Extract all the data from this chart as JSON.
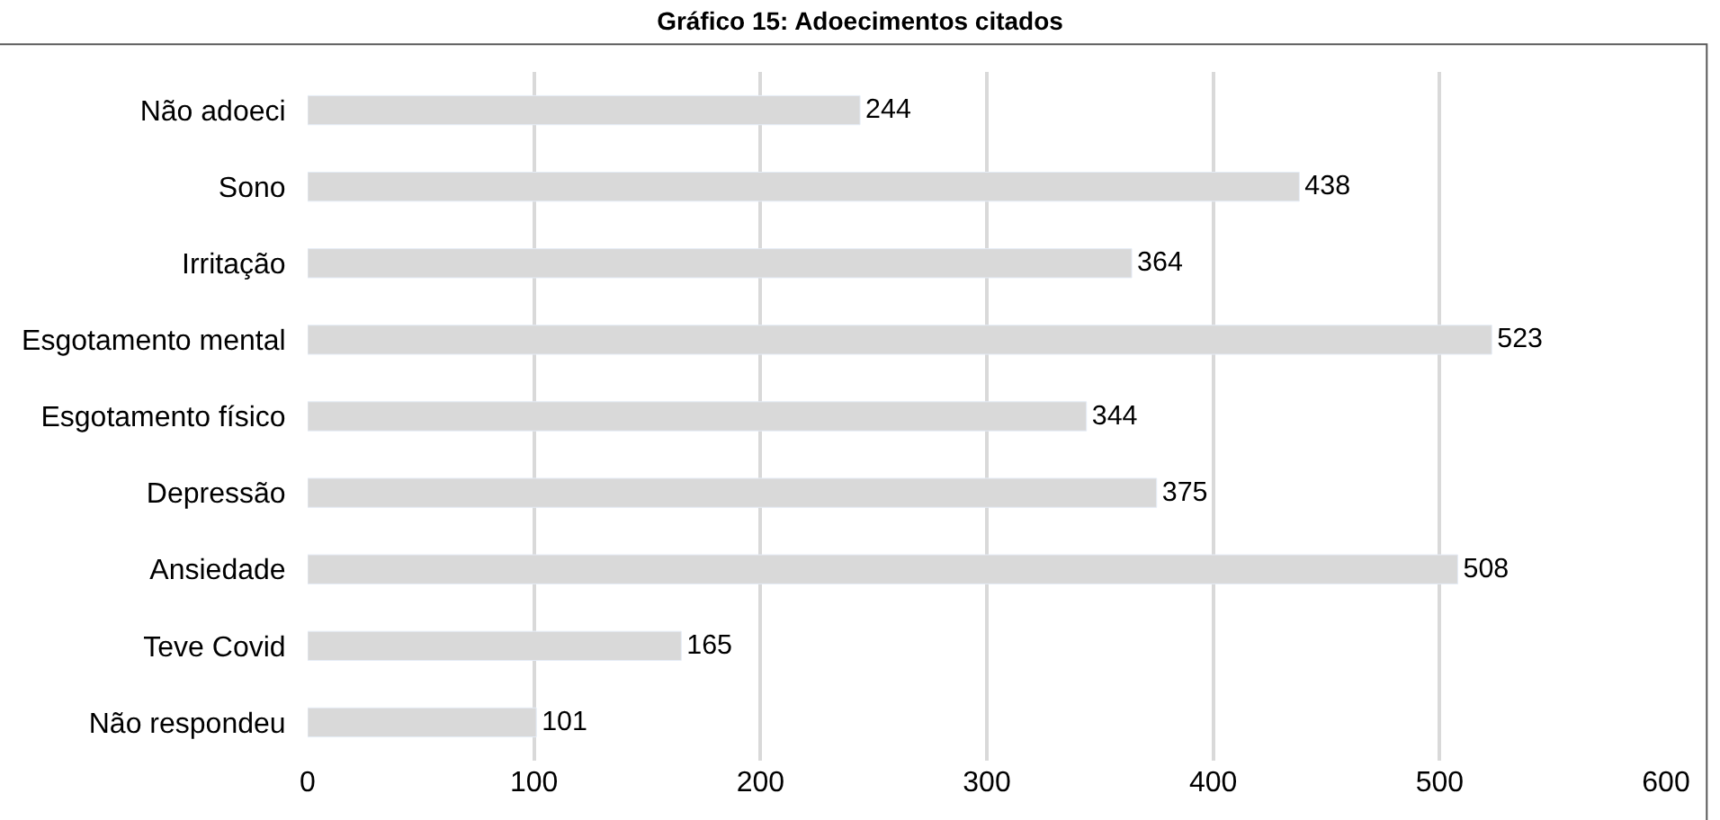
{
  "chart_data": {
    "type": "bar",
    "orientation": "horizontal",
    "title": "Gráfico 15: Adoecimentos citados",
    "categories": [
      "Não adoeci",
      "Sono",
      "Irritação",
      "Esgotamento mental",
      "Esgotamento físico",
      "Depressão",
      "Ansiedade",
      "Teve Covid",
      "Não respondeu"
    ],
    "values": [
      244,
      438,
      364,
      523,
      344,
      375,
      508,
      165,
      101
    ],
    "color": "#d9d9d9",
    "xlim": [
      0,
      600
    ],
    "xticks": [
      0,
      100,
      200,
      300,
      400,
      500,
      600
    ],
    "grid": "x",
    "data_labels": true,
    "legend": false
  }
}
